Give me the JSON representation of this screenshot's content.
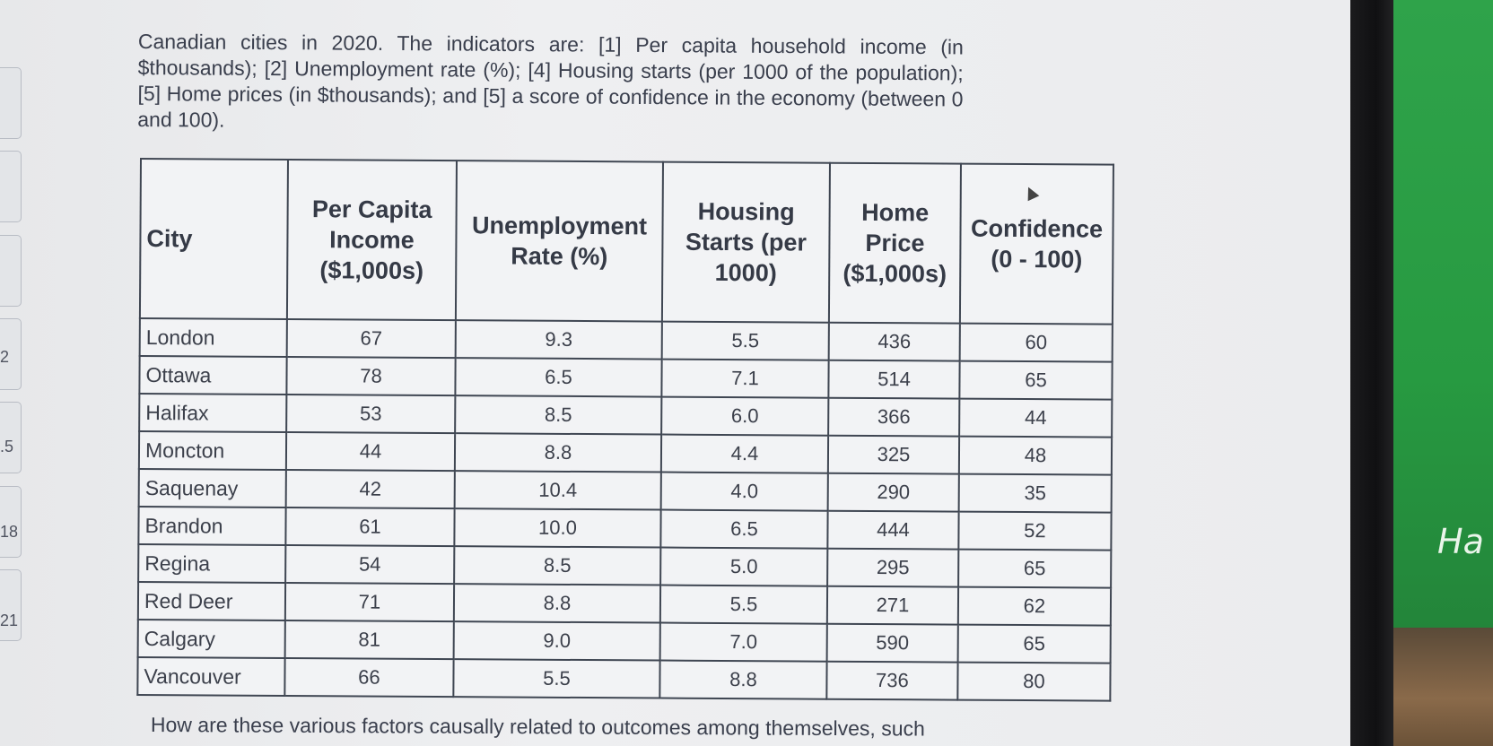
{
  "intro_text": "Canadian cities in 2020.   The indicators are: [1] Per capita household income (in $thousands); [2] Unemployment rate (%); [4] Housing starts (per 1000 of the population); [5] Home prices (in $thousands); and [5] a score of confidence in the economy (between 0 and 100).",
  "table": {
    "headers": [
      "City",
      "Per Capita Income ($1,000s)",
      "Unemployment Rate (%)",
      "Housing Starts (per 1000)",
      "Home Price ($1,000s)",
      "Confidence (0 - 100)"
    ],
    "rows": [
      [
        "London",
        "67",
        "9.3",
        "5.5",
        "436",
        "60"
      ],
      [
        "Ottawa",
        "78",
        "6.5",
        "7.1",
        "514",
        "65"
      ],
      [
        "Halifax",
        "53",
        "8.5",
        "6.0",
        "366",
        "44"
      ],
      [
        "Moncton",
        "44",
        "8.8",
        "4.4",
        "325",
        "48"
      ],
      [
        "Saquenay",
        "42",
        "10.4",
        "4.0",
        "290",
        "35"
      ],
      [
        "Brandon",
        "61",
        "10.0",
        "6.5",
        "444",
        "52"
      ],
      [
        "Regina",
        "54",
        "8.5",
        "5.0",
        "295",
        "65"
      ],
      [
        "Red Deer",
        "71",
        "8.8",
        "5.5",
        "271",
        "62"
      ],
      [
        "Calgary",
        "81",
        "9.0",
        "7.0",
        "590",
        "65"
      ],
      [
        "Vancouver",
        "66",
        "5.5",
        "8.8",
        "736",
        "80"
      ]
    ]
  },
  "bottom_text": "How are these various factors causally related to outcomes among themselves, such",
  "side_numbers": [
    "2",
    ".5",
    "18",
    "21"
  ],
  "background_sign_text": "Ha"
}
